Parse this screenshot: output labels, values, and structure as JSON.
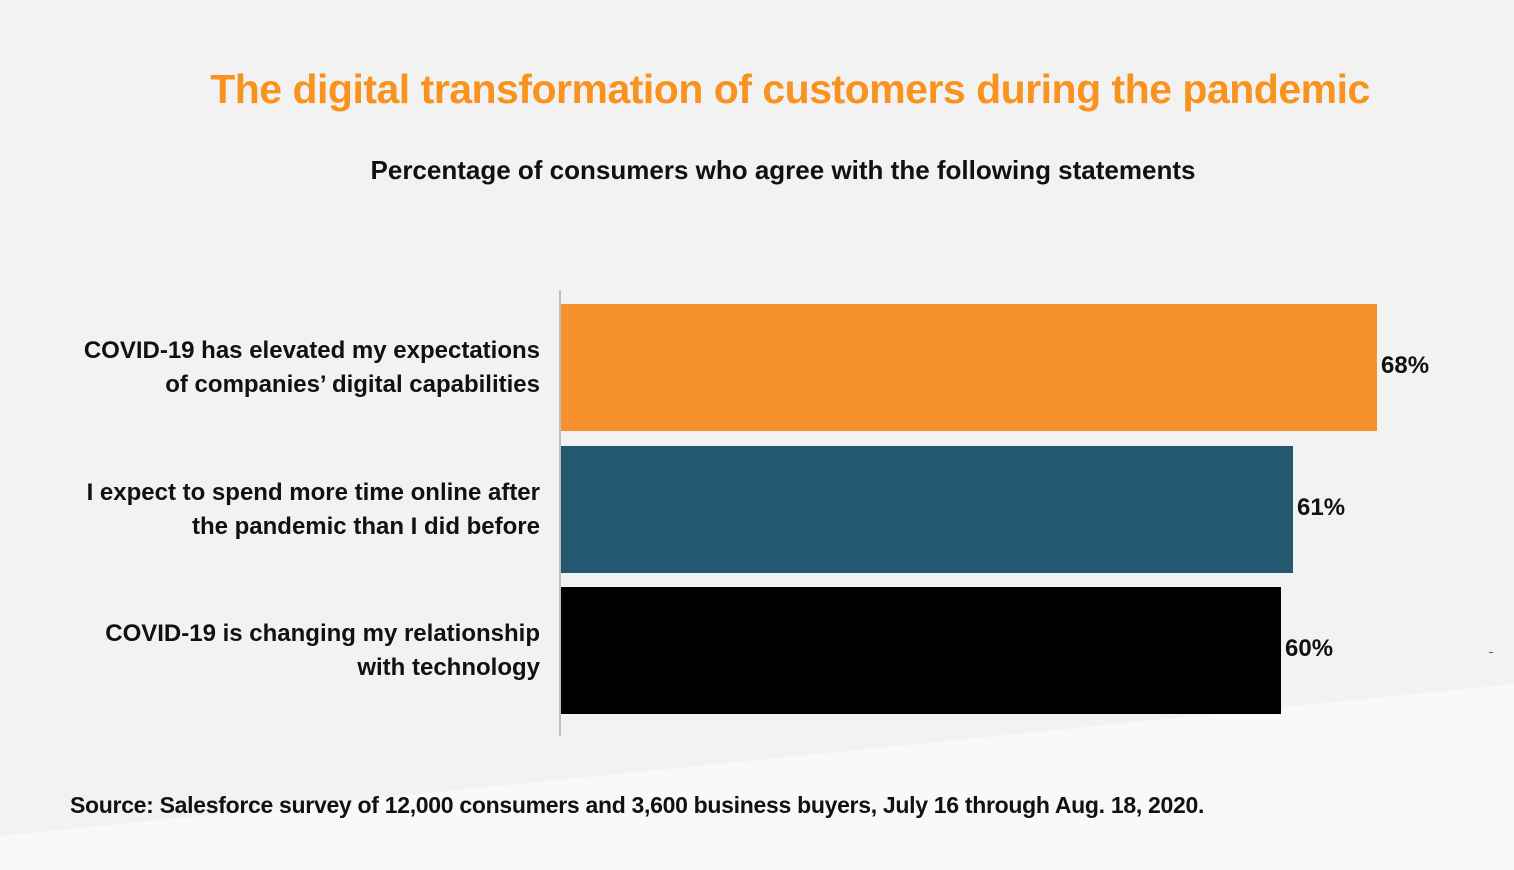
{
  "header": {
    "title": "The digital transformation of customers during the pandemic",
    "subtitle": "Percentage of consumers who agree with the following statements"
  },
  "footer": {
    "source": "Source: Salesforce survey of 12,000 consumers and 3,600 business buyers, July 16 through Aug. 18, 2020."
  },
  "colors": {
    "title": "#f7931e",
    "bars": [
      "#f7912d",
      "#235870",
      "#000000"
    ]
  },
  "chart_data": {
    "type": "bar",
    "orientation": "horizontal",
    "title": "The digital transformation of customers during the pandemic",
    "subtitle": "Percentage of consumers who agree with the following statements",
    "categories": [
      [
        "COVID-19 has elevated my expectations",
        "of companies’ digital capabilities"
      ],
      [
        "I expect to spend more time online after",
        "the pandemic than I did before"
      ],
      [
        "COVID-19 is changing my relationship",
        "with technology"
      ]
    ],
    "values": [
      68,
      61,
      60
    ],
    "value_labels": [
      "68%",
      "61%",
      "60%"
    ],
    "xlim": [
      0,
      100
    ],
    "grid": false,
    "legend": "none"
  }
}
